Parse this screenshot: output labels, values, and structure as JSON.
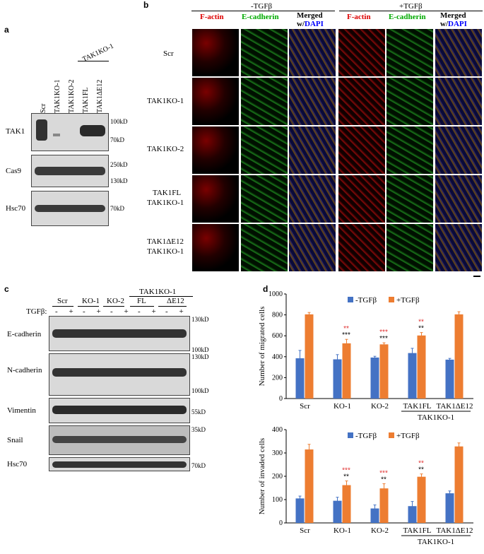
{
  "panels": {
    "a": "a",
    "b": "b",
    "c": "c",
    "d": "d"
  },
  "panel_a": {
    "group_label": "TAK1KO-1",
    "lanes": [
      "Scr",
      "TAK1KO-1",
      "TAK1KO-2",
      "TAK1FL",
      "TAK1ΔE12"
    ],
    "rows": [
      "TAK1",
      "Cas9",
      "Hsc70"
    ],
    "mw": [
      "100kD",
      "70kD",
      "250kD",
      "130kD",
      "70kD"
    ]
  },
  "panel_b": {
    "conditions": [
      "-TGFβ",
      "+TGFβ"
    ],
    "col_fact": "F-actin",
    "col_ecad": "E-cadherin",
    "col_merged": "Merged",
    "col_w": "w/",
    "col_dapi": "DAPI",
    "rows": [
      "Scr",
      "TAK1KO-1",
      "TAK1KO-2",
      "TAK1FL",
      "TAK1KO-1",
      "TAK1ΔE12",
      "TAK1KO-1"
    ]
  },
  "panel_c": {
    "tgf": "TGFβ:",
    "groups": [
      "Scr",
      "KO-1",
      "KO-2",
      "FL",
      "ΔE12"
    ],
    "group_parent": "TAK1KO-1",
    "signs": [
      "-",
      "+",
      "-",
      "+",
      "-",
      "+",
      "-",
      "+",
      "-",
      "+"
    ],
    "rows": [
      "E-cadherin",
      "N-cadherin",
      "Vimentin",
      "Snail",
      "Hsc70"
    ],
    "mw": [
      "130kD",
      "100kD",
      "130kD",
      "100kD",
      "55kD",
      "35kD",
      "70kD"
    ]
  },
  "chart_data": [
    {
      "type": "bar",
      "categories": [
        "Scr",
        "KO-1",
        "KO-2",
        "TAK1FL",
        "TAK1ΔE12"
      ],
      "category_group": "TAK1KO-1",
      "ylabel": "Number of migrated cells",
      "ylim": [
        0,
        1000
      ],
      "yticks": [
        0,
        200,
        400,
        600,
        800,
        1000
      ],
      "series": [
        {
          "name": "-TGFβ",
          "color": "#4472c4",
          "values": [
            385,
            375,
            392,
            435,
            372
          ],
          "errors": [
            75,
            45,
            12,
            45,
            12
          ]
        },
        {
          "name": "+TGFβ",
          "color": "#ed7d31",
          "values": [
            805,
            528,
            518,
            603,
            805
          ],
          "errors": [
            18,
            38,
            15,
            28,
            25
          ]
        }
      ],
      "annotations": [
        {
          "category": "KO-1",
          "red": "**",
          "black": "***"
        },
        {
          "category": "KO-2",
          "red": "***",
          "black": "***"
        },
        {
          "category": "TAK1FL",
          "red": "**",
          "black": "**"
        }
      ]
    },
    {
      "type": "bar",
      "categories": [
        "Scr",
        "KO-1",
        "KO-2",
        "TAK1FL",
        "TAK1ΔE12"
      ],
      "category_group": "TAK1KO-1",
      "ylabel": "Number of invaded cells",
      "ylim": [
        0,
        400
      ],
      "yticks": [
        0,
        100,
        200,
        300,
        400
      ],
      "series": [
        {
          "name": "-TGFβ",
          "color": "#4472c4",
          "values": [
            105,
            95,
            62,
            72,
            127
          ],
          "errors": [
            10,
            15,
            15,
            20,
            10
          ]
        },
        {
          "name": "+TGFβ",
          "color": "#ed7d31",
          "values": [
            315,
            162,
            148,
            198,
            328
          ],
          "errors": [
            22,
            18,
            20,
            12,
            15
          ]
        }
      ],
      "annotations": [
        {
          "category": "KO-1",
          "red": "***",
          "black": "**"
        },
        {
          "category": "KO-2",
          "red": "***",
          "black": "**"
        },
        {
          "category": "TAK1FL",
          "red": "**",
          "black": "**"
        }
      ]
    }
  ]
}
